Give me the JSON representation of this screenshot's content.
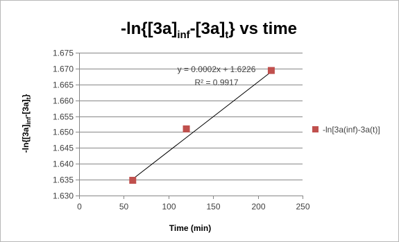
{
  "chart_data": {
    "type": "scatter",
    "title": {
      "prefix": "-ln{[3a]",
      "sub1": "inf",
      "middle": "-[3a]",
      "sub2": "t",
      "suffix": "} vs time"
    },
    "xlabel": "Time (min)",
    "ylabel": {
      "prefix": "-ln{[3a]",
      "sub1": "inf",
      "middle": "-[3a]",
      "sub2": "t",
      "suffix": "}"
    },
    "xlim": [
      0,
      250
    ],
    "ylim": [
      1.63,
      1.675
    ],
    "xticks": [
      0,
      50,
      100,
      150,
      200,
      250
    ],
    "yticks": [
      1.63,
      1.635,
      1.64,
      1.645,
      1.65,
      1.655,
      1.66,
      1.665,
      1.67,
      1.675
    ],
    "ytick_decimals": 3,
    "grid": "horizontal",
    "legend_position": "right",
    "series": [
      {
        "name": "-ln[3a(inf)-3a(t)]",
        "color": "#c0504d",
        "marker": "square",
        "points": [
          {
            "x": 60,
            "y": 1.6348
          },
          {
            "x": 120,
            "y": 1.651
          },
          {
            "x": 215,
            "y": 1.6694
          }
        ]
      }
    ],
    "trendline": {
      "type": "linear",
      "x_range": [
        60,
        215
      ],
      "y_range": [
        1.6352,
        1.669
      ],
      "equation": "y = 0.0002x + 1.6226",
      "r_squared": "R² = 0.9917",
      "color": "#000000"
    }
  }
}
